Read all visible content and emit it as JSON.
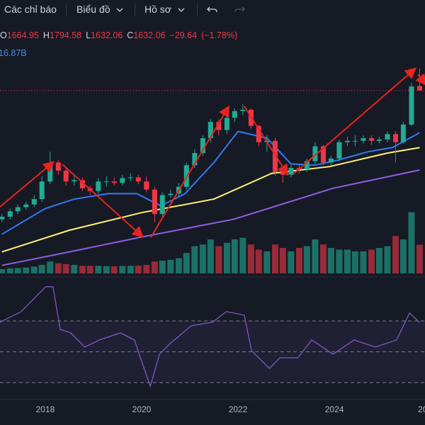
{
  "toolbar": {
    "indicators": "Các chỉ báo",
    "chart": "Biểu đồ",
    "profile": "Hồ sơ"
  },
  "legend": {
    "open_label": "O",
    "open": "1664.95",
    "high_label": "H",
    "high": "1794.58",
    "low_label": "L",
    "low": "1632.06",
    "close_label": "C",
    "close": "1632.06",
    "change": "−29.64",
    "change_pct": "(−1.78%)",
    "volume": "16.87B"
  },
  "chart_data": {
    "type": "candlestick",
    "x": [
      2017.1,
      2017.27,
      2017.43,
      2017.6,
      2017.77,
      2017.93,
      2018.1,
      2018.27,
      2018.43,
      2018.6,
      2018.77,
      2018.93,
      2019.1,
      2019.27,
      2019.43,
      2019.6,
      2019.77,
      2019.93,
      2020.1,
      2020.27,
      2020.43,
      2020.6,
      2020.77,
      2020.93,
      2021.1,
      2021.27,
      2021.43,
      2021.6,
      2021.77,
      2021.93,
      2022.1,
      2022.27,
      2022.43,
      2022.6,
      2022.77,
      2022.93,
      2023.1,
      2023.27,
      2023.43,
      2023.6,
      2023.77,
      2023.93,
      2024.1,
      2024.27,
      2024.43,
      2024.6,
      2024.77,
      2024.93,
      2025.1,
      2025.27,
      2025.43,
      2025.6,
      2025.77
    ],
    "open": [
      680,
      700,
      740,
      770,
      790,
      830,
      960,
      1100,
      1040,
      960,
      970,
      910,
      890,
      960,
      960,
      950,
      985,
      990,
      960,
      900,
      720,
      860,
      870,
      920,
      1080,
      1170,
      1280,
      1400,
      1340,
      1430,
      1480,
      1490,
      1370,
      1250,
      1260,
      1030,
      1010,
      1060,
      1050,
      1110,
      1220,
      1100,
      1130,
      1250,
      1260,
      1260,
      1280,
      1260,
      1270,
      1310,
      1250,
      1380,
      1664.95
    ],
    "high": [
      720,
      760,
      790,
      810,
      860,
      1000,
      1180,
      1120,
      1060,
      1000,
      990,
      930,
      985,
      1000,
      990,
      1010,
      1020,
      1010,
      1000,
      920,
      880,
      900,
      950,
      1100,
      1200,
      1300,
      1420,
      1420,
      1450,
      1500,
      1530,
      1500,
      1380,
      1300,
      1280,
      1060,
      1080,
      1090,
      1130,
      1250,
      1230,
      1150,
      1270,
      1290,
      1300,
      1300,
      1300,
      1290,
      1330,
      1330,
      1400,
      1690,
      1794.58
    ],
    "low": [
      660,
      680,
      720,
      750,
      770,
      810,
      940,
      1010,
      930,
      930,
      890,
      860,
      870,
      920,
      930,
      930,
      960,
      940,
      880,
      660,
      700,
      840,
      850,
      900,
      1060,
      1150,
      1250,
      1300,
      1310,
      1400,
      1450,
      1350,
      1220,
      1180,
      1000,
      950,
      990,
      1020,
      1030,
      1090,
      1080,
      1080,
      1110,
      1220,
      1220,
      1240,
      1230,
      1240,
      1250,
      1100,
      1240,
      1370,
      1632.06
    ],
    "close": [
      700,
      740,
      770,
      790,
      830,
      960,
      1100,
      1040,
      960,
      970,
      910,
      890,
      960,
      960,
      950,
      985,
      990,
      960,
      900,
      720,
      860,
      870,
      920,
      1080,
      1170,
      1280,
      1400,
      1340,
      1430,
      1480,
      1490,
      1370,
      1250,
      1260,
      1030,
      1010,
      1060,
      1050,
      1110,
      1220,
      1100,
      1130,
      1250,
      1260,
      1260,
      1280,
      1260,
      1270,
      1310,
      1250,
      1380,
      1661.7,
      1632.06
    ],
    "volume": [
      2.5,
      3,
      3.2,
      3.5,
      4,
      5,
      7,
      6,
      5.5,
      5,
      4.5,
      4.5,
      4.5,
      4.3,
      4.2,
      4.4,
      4.5,
      4.6,
      5,
      7,
      7.5,
      8,
      9,
      12,
      16,
      17,
      20,
      16,
      18,
      20,
      21,
      17,
      14,
      13,
      17,
      15,
      13,
      15,
      16,
      20,
      17,
      15,
      14,
      14,
      13,
      13,
      14,
      15,
      16,
      22,
      20,
      36,
      16.87
    ],
    "up_color": "#22ab94",
    "down_color": "#f23645",
    "xlim": [
      2017.06,
      2025.88
    ],
    "ylim": [
      260,
      1840
    ],
    "volume_lim": [
      0,
      40
    ],
    "xticks": [
      2018,
      2020,
      2022,
      2024,
      {
        "value": 2026,
        "label": "20"
      }
    ],
    "moving_averages": [
      {
        "color": "#3179f5",
        "x": [
          2017.1,
          2018.0,
          2018.6,
          2019.3,
          2019.9,
          2020.4,
          2020.9,
          2021.5,
          2022.0,
          2022.6,
          2023.1,
          2023.6,
          2024.1,
          2024.7,
          2025.2,
          2025.77
        ],
        "values": [
          570,
          760,
          830,
          870,
          870,
          780,
          870,
          1100,
          1330,
          1280,
          1090,
          1080,
          1120,
          1180,
          1210,
          1320
        ]
      },
      {
        "color": "#fff176",
        "x": [
          2017.1,
          2018.5,
          2020.0,
          2021.5,
          2022.7,
          2023.9,
          2025.1,
          2025.77
        ],
        "values": [
          440,
          600,
          730,
          830,
          1020,
          1070,
          1170,
          1210
        ]
      },
      {
        "color": "#8e5fe0",
        "x": [
          2017.1,
          2018.5,
          2020.0,
          2021.9,
          2023.97,
          2025.77
        ],
        "values": [
          340,
          440,
          550,
          680,
          910,
          1045
        ]
      }
    ],
    "rsi": {
      "color": "#7e57c2",
      "ylim": [
        20,
        97.5
      ],
      "levels": [
        70,
        50,
        30
      ],
      "x": [
        2017.06,
        2017.5,
        2017.79,
        2018.01,
        2018.16,
        2018.31,
        2018.53,
        2018.82,
        2019.12,
        2019.56,
        2019.85,
        2020.0,
        2020.18,
        2020.37,
        2020.59,
        2021.03,
        2021.47,
        2021.76,
        2022.13,
        2022.28,
        2022.65,
        2022.87,
        2023.24,
        2023.53,
        2023.97,
        2024.41,
        2024.85,
        2025.29,
        2025.56,
        2025.76
      ],
      "values": [
        69.1,
        76,
        85.2,
        92.1,
        92.1,
        64.5,
        62.2,
        53,
        57.6,
        62.2,
        57.6,
        43.8,
        27.7,
        48.4,
        55.3,
        66.8,
        69.1,
        76,
        73.7,
        50.7,
        39.2,
        46.1,
        46.1,
        57.6,
        48.4,
        57.6,
        53,
        57.6,
        75.1,
        69.1
      ]
    }
  }
}
